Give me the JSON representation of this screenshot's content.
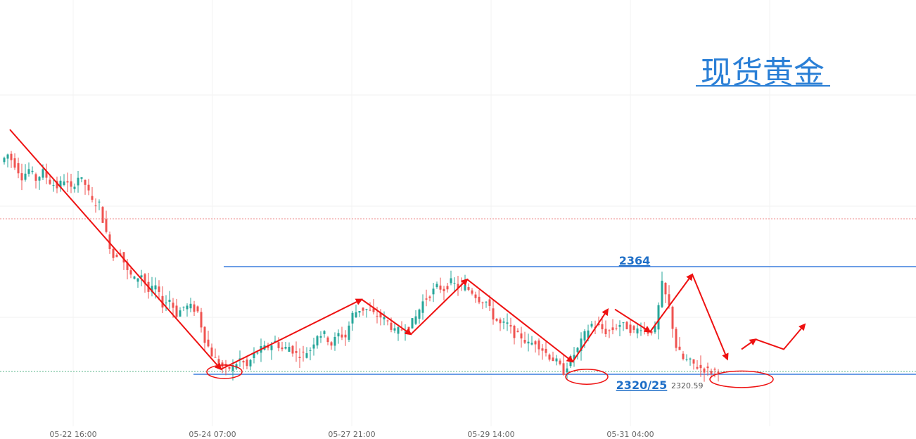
{
  "chart_data": {
    "type": "candlestick",
    "title": "现货黄金",
    "x_tick_labels": [
      "05-22 16:00",
      "05-24 07:00",
      "05-27 21:00",
      "05-29 14:00",
      "05-31 04:00"
    ],
    "ylim": [
      2300,
      2440
    ],
    "grid": true,
    "levels": [
      {
        "name": "resistance",
        "value": 2364,
        "label": "2364",
        "color": "#3b7ddd"
      },
      {
        "name": "support",
        "value": 2320,
        "label": "2320/25",
        "color": "#3b7ddd"
      }
    ],
    "current_price": {
      "value": 2320.59,
      "label": "2320.59"
    },
    "colors": {
      "up": "#26a69a",
      "down": "#ef5350",
      "annotation": "#ee1111",
      "level": "#3b7ddd"
    },
    "price_path": [
      [
        0,
        2405
      ],
      [
        2,
        2408
      ],
      [
        4,
        2404
      ],
      [
        6,
        2399
      ],
      [
        8,
        2402
      ],
      [
        10,
        2398
      ],
      [
        12,
        2401
      ],
      [
        14,
        2397
      ],
      [
        16,
        2395
      ],
      [
        18,
        2398
      ],
      [
        20,
        2394
      ],
      [
        22,
        2399
      ],
      [
        24,
        2396
      ],
      [
        26,
        2389
      ],
      [
        28,
        2388
      ],
      [
        30,
        2376
      ],
      [
        32,
        2367
      ],
      [
        34,
        2369
      ],
      [
        36,
        2361
      ],
      [
        38,
        2358
      ],
      [
        40,
        2360
      ],
      [
        42,
        2353
      ],
      [
        44,
        2355
      ],
      [
        46,
        2348
      ],
      [
        48,
        2350
      ],
      [
        50,
        2344
      ],
      [
        52,
        2347
      ],
      [
        54,
        2347
      ],
      [
        56,
        2345
      ],
      [
        58,
        2334
      ],
      [
        60,
        2328
      ],
      [
        62,
        2324
      ],
      [
        64,
        2322
      ],
      [
        66,
        2323
      ],
      [
        68,
        2326
      ],
      [
        70,
        2323
      ],
      [
        72,
        2328
      ],
      [
        74,
        2330
      ],
      [
        76,
        2331
      ],
      [
        78,
        2333
      ],
      [
        80,
        2330
      ],
      [
        82,
        2331
      ],
      [
        84,
        2328
      ],
      [
        86,
        2328
      ],
      [
        88,
        2330
      ],
      [
        90,
        2336
      ],
      [
        92,
        2336
      ],
      [
        94,
        2332
      ],
      [
        96,
        2336
      ],
      [
        98,
        2335
      ],
      [
        100,
        2344
      ],
      [
        102,
        2346
      ],
      [
        104,
        2346
      ],
      [
        106,
        2344
      ],
      [
        108,
        2343
      ],
      [
        110,
        2341
      ],
      [
        112,
        2337
      ],
      [
        114,
        2338
      ],
      [
        116,
        2339
      ],
      [
        118,
        2343
      ],
      [
        120,
        2349
      ],
      [
        122,
        2352
      ],
      [
        124,
        2355
      ],
      [
        126,
        2354
      ],
      [
        128,
        2357
      ],
      [
        130,
        2355
      ],
      [
        132,
        2355
      ],
      [
        134,
        2353
      ],
      [
        136,
        2350
      ],
      [
        138,
        2349
      ],
      [
        140,
        2343
      ],
      [
        142,
        2340
      ],
      [
        144,
        2340
      ],
      [
        146,
        2336
      ],
      [
        148,
        2335
      ],
      [
        150,
        2332
      ],
      [
        152,
        2333
      ],
      [
        154,
        2330
      ],
      [
        156,
        2327
      ],
      [
        158,
        2325
      ],
      [
        160,
        2321
      ],
      [
        162,
        2326
      ],
      [
        164,
        2330
      ],
      [
        166,
        2336
      ],
      [
        168,
        2340
      ],
      [
        170,
        2339
      ],
      [
        172,
        2337
      ],
      [
        174,
        2338
      ],
      [
        176,
        2340
      ],
      [
        178,
        2339
      ],
      [
        180,
        2337
      ],
      [
        182,
        2339
      ],
      [
        184,
        2337
      ],
      [
        186,
        2338
      ],
      [
        188,
        2356
      ],
      [
        190,
        2347
      ],
      [
        192,
        2331
      ],
      [
        194,
        2326
      ],
      [
        196,
        2325
      ],
      [
        198,
        2323
      ],
      [
        200,
        2322
      ],
      [
        202,
        2321
      ],
      [
        204,
        2322
      ]
    ],
    "annotations": [
      {
        "type": "arrow",
        "from": [
          2,
          2418
        ],
        "to": [
          62,
          2322
        ]
      },
      {
        "type": "arrow",
        "from": [
          62,
          2322
        ],
        "to": [
          102,
          2350
        ]
      },
      {
        "type": "arrow",
        "from": [
          102,
          2350
        ],
        "to": [
          116,
          2336
        ]
      },
      {
        "type": "arrow",
        "from": [
          116,
          2336
        ],
        "to": [
          132,
          2358
        ]
      },
      {
        "type": "arrow",
        "from": [
          132,
          2358
        ],
        "to": [
          162,
          2325
        ]
      },
      {
        "type": "arrow",
        "from": [
          162,
          2325
        ],
        "to": [
          172,
          2346
        ]
      },
      {
        "type": "arrow",
        "from": [
          174,
          2346
        ],
        "to": [
          184,
          2337
        ]
      },
      {
        "type": "arrow",
        "from": [
          184,
          2337
        ],
        "to": [
          196,
          2360
        ]
      },
      {
        "type": "arrow",
        "from": [
          196,
          2360
        ],
        "to": [
          206,
          2326
        ]
      },
      {
        "type": "arrow",
        "from": [
          210,
          2330
        ],
        "to": [
          214,
          2334
        ]
      },
      {
        "type": "polyline",
        "points": [
          [
            214,
            2334
          ],
          [
            222,
            2330
          ],
          [
            228,
            2340
          ]
        ]
      },
      {
        "type": "ellipse",
        "center": [
          63,
          2321
        ],
        "rx": 5,
        "ry": 2.7
      },
      {
        "type": "ellipse",
        "center": [
          166,
          2319
        ],
        "rx": 6,
        "ry": 3
      },
      {
        "type": "ellipse",
        "center": [
          210,
          2318
        ],
        "rx": 9,
        "ry": 3.3
      }
    ]
  }
}
